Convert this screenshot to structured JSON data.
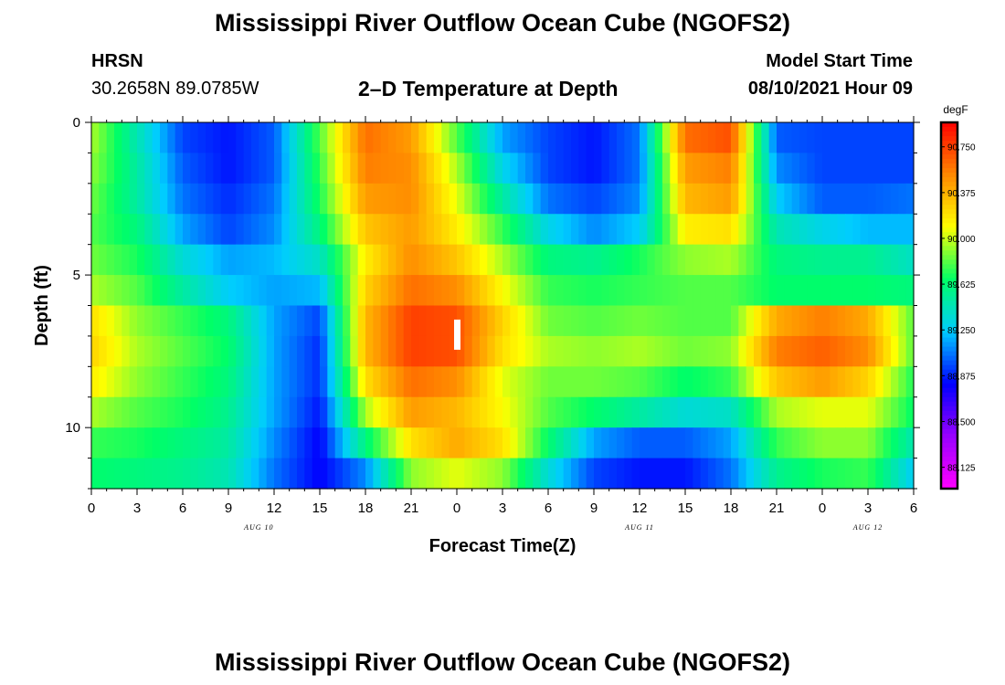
{
  "title": "Mississippi River Outflow Ocean Cube (NGOFS2)",
  "footer_title": "Mississippi River Outflow Ocean Cube (NGOFS2)",
  "station": {
    "name": "HRSN",
    "coords": "30.2658N  89.0785W"
  },
  "subtitle": "2–D Temperature at Depth",
  "model": {
    "label": "Model Start Time",
    "value": "08/10/2021 Hour 09"
  },
  "chart_data": {
    "type": "heatmap",
    "xlabel": "Forecast Time(Z)",
    "ylabel": "Depth (ft)",
    "x_tick_labels": [
      "0",
      "3",
      "6",
      "9",
      "12",
      "15",
      "18",
      "21",
      "0",
      "3",
      "6",
      "9",
      "12",
      "15",
      "18",
      "21",
      "0",
      "3",
      "6"
    ],
    "x_hours_from_aug10_00z": [
      0,
      3,
      6,
      9,
      12,
      15,
      18,
      21,
      24,
      27,
      30,
      33,
      36,
      39,
      42,
      45,
      48,
      51,
      54
    ],
    "date_labels": [
      {
        "text": "AUG 10",
        "hour": 11
      },
      {
        "text": "AUG 11",
        "hour": 36
      },
      {
        "text": "AUG 12",
        "hour": 51
      }
    ],
    "xlim": [
      0,
      54
    ],
    "y_tick_labels": [
      "0",
      "5",
      "10"
    ],
    "y_ticks": [
      0,
      5,
      10
    ],
    "ylim": [
      0,
      12
    ],
    "depth_bins_ft": [
      0.5,
      1.5,
      2.5,
      3.5,
      4.5,
      5.5,
      6.5,
      7.5,
      8.5,
      9.5,
      10.5,
      11.5
    ],
    "time_knots_hours": [
      0,
      3,
      6,
      9,
      12,
      15,
      18,
      21,
      24,
      27,
      30,
      33,
      36,
      39,
      42,
      45,
      48,
      51,
      54
    ],
    "values_degF": [
      [
        89.95,
        89.45,
        88.95,
        88.85,
        89.0,
        89.8,
        90.6,
        90.45,
        89.8,
        89.15,
        88.95,
        88.85,
        89.05,
        90.6,
        90.7,
        89.0,
        88.95,
        88.95,
        88.95
      ],
      [
        89.9,
        89.5,
        89.0,
        88.85,
        89.0,
        89.75,
        90.55,
        90.5,
        89.95,
        89.3,
        88.95,
        88.85,
        89.05,
        90.45,
        90.55,
        89.1,
        88.95,
        88.95,
        88.95
      ],
      [
        89.85,
        89.5,
        89.05,
        88.9,
        89.05,
        89.7,
        90.45,
        90.5,
        90.05,
        89.5,
        89.05,
        88.95,
        89.1,
        90.35,
        90.45,
        89.25,
        89.0,
        89.0,
        89.05
      ],
      [
        89.8,
        89.6,
        89.15,
        88.95,
        89.1,
        89.6,
        90.3,
        90.45,
        90.15,
        89.75,
        89.3,
        89.1,
        89.25,
        90.15,
        90.2,
        89.45,
        89.3,
        89.2,
        89.2
      ],
      [
        89.85,
        89.7,
        89.35,
        89.15,
        89.2,
        89.4,
        90.15,
        90.5,
        90.3,
        89.95,
        89.6,
        89.55,
        89.7,
        89.9,
        89.95,
        89.6,
        89.55,
        89.55,
        89.4
      ],
      [
        89.95,
        89.8,
        89.5,
        89.25,
        89.15,
        89.2,
        90.25,
        90.6,
        90.5,
        90.1,
        89.75,
        89.7,
        89.75,
        89.8,
        89.8,
        89.65,
        89.65,
        89.65,
        89.6
      ],
      [
        90.2,
        89.9,
        89.75,
        89.6,
        89.15,
        88.95,
        90.35,
        90.75,
        90.7,
        90.25,
        89.85,
        89.8,
        89.85,
        89.8,
        89.8,
        90.4,
        90.55,
        90.4,
        89.8
      ],
      [
        90.25,
        89.95,
        89.8,
        89.65,
        89.15,
        88.9,
        90.35,
        90.75,
        90.7,
        90.2,
        89.95,
        89.9,
        89.95,
        89.85,
        89.9,
        90.55,
        90.65,
        90.5,
        89.8
      ],
      [
        90.15,
        89.9,
        89.75,
        89.6,
        89.15,
        88.9,
        90.2,
        90.6,
        90.5,
        90.05,
        89.85,
        89.85,
        89.8,
        89.65,
        89.75,
        90.3,
        90.45,
        90.25,
        89.7
      ],
      [
        89.95,
        89.8,
        89.7,
        89.55,
        89.15,
        88.85,
        89.95,
        90.45,
        90.35,
        90.1,
        89.8,
        89.65,
        89.5,
        89.35,
        89.4,
        89.95,
        90.05,
        90.05,
        89.65
      ],
      [
        89.75,
        89.7,
        89.6,
        89.5,
        89.1,
        88.8,
        89.6,
        90.2,
        90.4,
        90.2,
        89.65,
        89.15,
        89.0,
        89.0,
        89.15,
        89.75,
        89.9,
        89.9,
        89.45
      ],
      [
        89.65,
        89.6,
        89.55,
        89.45,
        89.05,
        88.8,
        89.1,
        89.9,
        90.05,
        89.9,
        89.35,
        88.95,
        88.85,
        88.85,
        89.05,
        89.55,
        89.7,
        89.75,
        89.25
      ]
    ],
    "marker": {
      "hour": 24,
      "depth_ft": 7.0
    },
    "colorbar": {
      "unit": "degF",
      "tick_labels": [
        "90.750",
        "90.375",
        "90.000",
        "89.625",
        "89.250",
        "88.875",
        "88.500",
        "88.125"
      ],
      "tick_values": [
        90.75,
        90.375,
        90.0,
        89.625,
        89.25,
        88.875,
        88.5,
        88.125
      ],
      "range": [
        87.95,
        90.95
      ],
      "colors": [
        "#ff00ff",
        "#9900ff",
        "#0000ff",
        "#00ccff",
        "#00ff66",
        "#ffff00",
        "#ff8800",
        "#ff0000"
      ]
    }
  }
}
